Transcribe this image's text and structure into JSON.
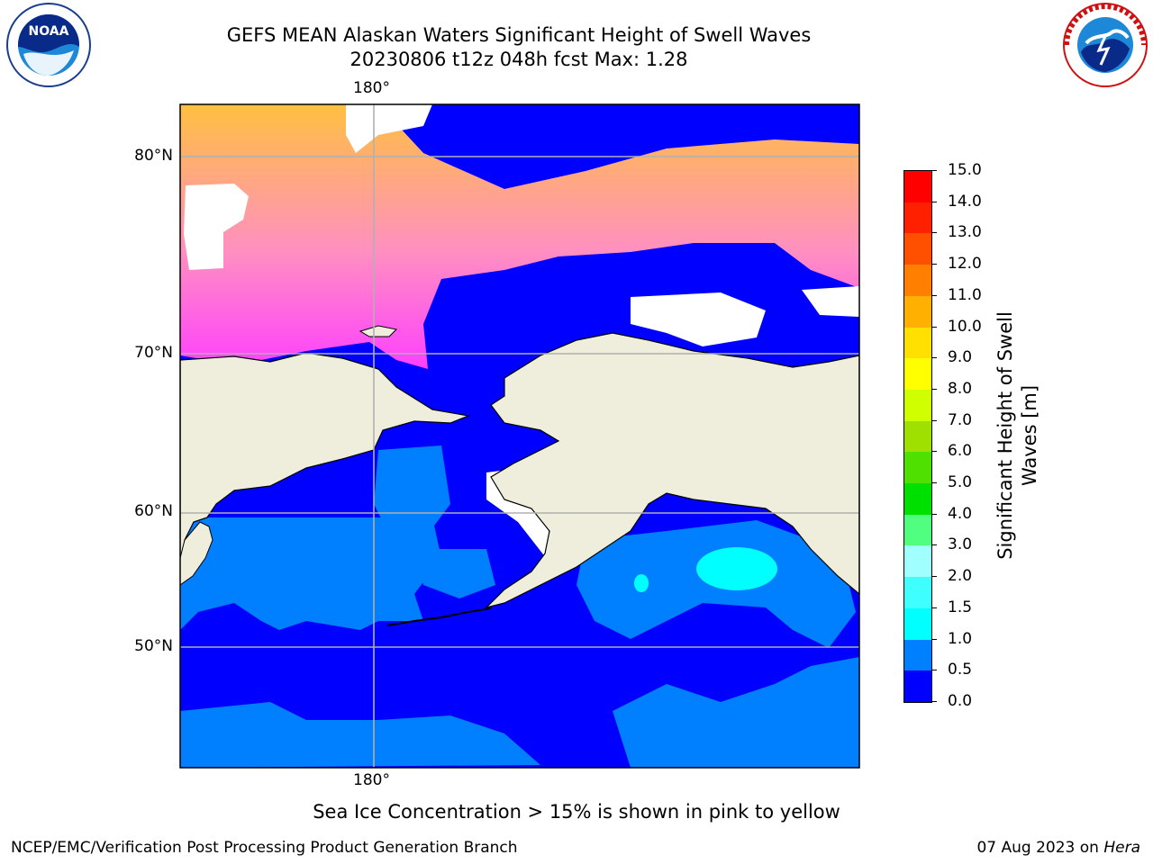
{
  "title": {
    "line1": "GEFS MEAN Alaskan Waters Significant Height of Swell Waves",
    "line2": "20230806 t12z 048h fcst   Max: 1.28"
  },
  "logos": {
    "left": {
      "name": "NOAA",
      "ring_text": "NATIONAL OCEANIC AND ATMOSPHERIC ADMINISTRATION · U.S. DEPARTMENT OF COMMERCE"
    },
    "right": {
      "name": "NATIONAL WEATHER SERVICE"
    }
  },
  "map": {
    "lon_labels": [
      "180°",
      "180°"
    ],
    "lat_labels": [
      "80°N",
      "70°N",
      "60°N",
      "50°N"
    ],
    "colors": {
      "land": "#efeddb",
      "no_data": "#ffffff",
      "grid": "#b0b0b0"
    }
  },
  "colorbar": {
    "title_line1": "Significant Height of Swell",
    "title_line2": "Waves [m]",
    "ticks": [
      "0.0",
      "0.5",
      "1.0",
      "1.5",
      "2.0",
      "3.0",
      "4.0",
      "5.0",
      "6.0",
      "7.0",
      "8.0",
      "9.0",
      "10.0",
      "11.0",
      "12.0",
      "13.0",
      "14.0",
      "15.0"
    ],
    "colors": [
      "#0000ff",
      "#0080ff",
      "#00ffff",
      "#40ffff",
      "#a0ffff",
      "#50ff80",
      "#00e000",
      "#50e000",
      "#a0e000",
      "#d0ff00",
      "#ffff00",
      "#ffe000",
      "#ffb000",
      "#ff8000",
      "#ff5000",
      "#ff2000",
      "#ff0000"
    ]
  },
  "footnote": "Sea Ice Concentration > 15% is shown in pink to yellow",
  "footer": {
    "left": "NCEP/EMC/Verification Post Processing Product Generation Branch",
    "right_prefix": "07 Aug 2023 on ",
    "right_host": "Hera"
  }
}
